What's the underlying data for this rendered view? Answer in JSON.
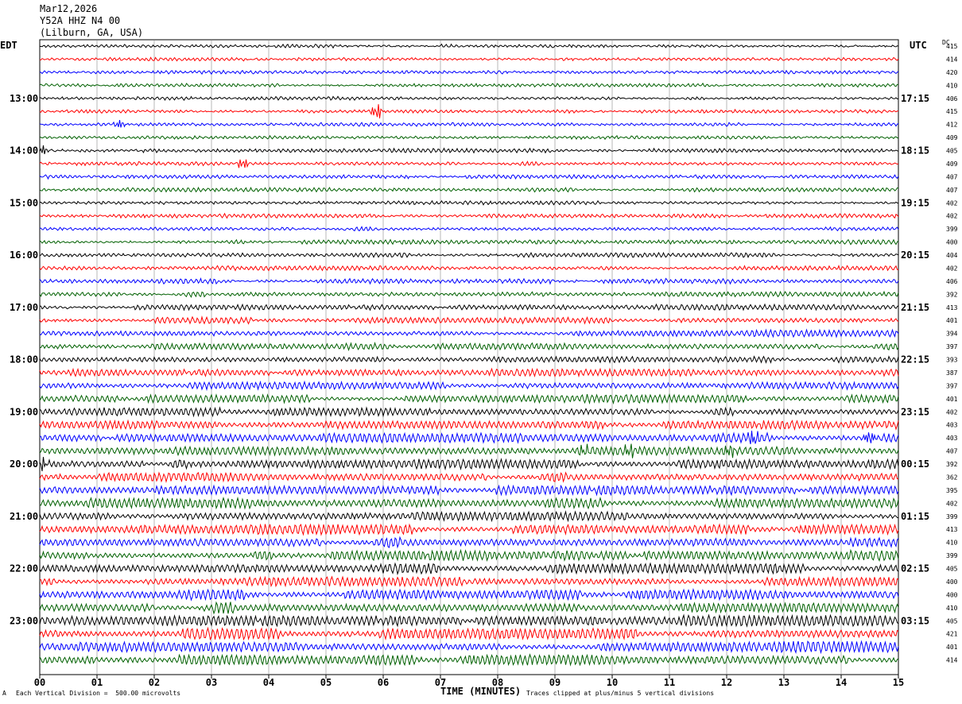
{
  "header": {
    "date": "Mar12,2026",
    "station": "Y52A HHZ N4 00",
    "location": "(Lilburn, GA, USA)"
  },
  "left_axis_label": "EDT",
  "right_axis_label": "UTC",
  "dc_label": "DC",
  "xlabel": "TIME (MINUTES)",
  "footer": {
    "division": "Each Vertical Division =  500.00 microvolts",
    "clipped": "Traces clipped at plus/minus 5 vertical divisions",
    "mark": "A"
  },
  "chart_data": {
    "type": "line",
    "description_of_rows": "helicorder, 48 traces of 15 minutes each",
    "x_ticks": [
      "00",
      "01",
      "02",
      "03",
      "04",
      "05",
      "06",
      "07",
      "08",
      "09",
      "10",
      "11",
      "12",
      "13",
      "14",
      "15"
    ],
    "xlim": [
      0,
      15
    ],
    "trace_colors": [
      "#000000",
      "#ff0000",
      "#0000ff",
      "#006000"
    ],
    "left_hour_labels": [
      {
        "row": 4,
        "text": "13:00"
      },
      {
        "row": 8,
        "text": "14:00"
      },
      {
        "row": 12,
        "text": "15:00"
      },
      {
        "row": 16,
        "text": "16:00"
      },
      {
        "row": 20,
        "text": "17:00"
      },
      {
        "row": 24,
        "text": "18:00"
      },
      {
        "row": 28,
        "text": "19:00"
      },
      {
        "row": 32,
        "text": "20:00"
      },
      {
        "row": 36,
        "text": "21:00"
      },
      {
        "row": 40,
        "text": "22:00"
      },
      {
        "row": 44,
        "text": "23:00"
      }
    ],
    "right_hour_labels": [
      {
        "row": 4,
        "text": "17:15"
      },
      {
        "row": 8,
        "text": "18:15"
      },
      {
        "row": 12,
        "text": "19:15"
      },
      {
        "row": 16,
        "text": "20:15"
      },
      {
        "row": 20,
        "text": "21:15"
      },
      {
        "row": 24,
        "text": "22:15"
      },
      {
        "row": 28,
        "text": "23:15"
      },
      {
        "row": 32,
        "text": "00:15"
      },
      {
        "row": 36,
        "text": "01:15"
      },
      {
        "row": 40,
        "text": "02:15"
      },
      {
        "row": 44,
        "text": "03:15"
      }
    ],
    "dc_offsets": [
      "415",
      "414",
      "420",
      "410",
      "406",
      "415",
      "412",
      "409",
      "405",
      "409",
      "407",
      "407",
      "402",
      "402",
      "399",
      "400",
      "404",
      "402",
      "406",
      "392",
      "413",
      "401",
      "394",
      "397",
      "393",
      "387",
      "397",
      "401",
      "402",
      "403",
      "403",
      "407",
      "392",
      "362",
      "395",
      "402",
      "399",
      "413",
      "410",
      "399",
      "405",
      "400",
      "400",
      "410",
      "405",
      "421",
      "401",
      "414"
    ],
    "amplitude_level": [
      0.25,
      0.25,
      0.25,
      0.25,
      0.25,
      0.25,
      0.25,
      0.25,
      0.3,
      0.3,
      0.3,
      0.3,
      0.3,
      0.3,
      0.3,
      0.35,
      0.35,
      0.4,
      0.4,
      0.45,
      0.45,
      0.5,
      0.55,
      0.55,
      0.55,
      0.6,
      0.65,
      0.7,
      0.7,
      0.75,
      0.8,
      0.8,
      0.8,
      0.8,
      0.85,
      0.85,
      0.85,
      0.85,
      0.9,
      0.9,
      0.9,
      0.9,
      0.9,
      0.95,
      0.95,
      0.95,
      0.95,
      0.95
    ],
    "events": [
      {
        "row": 5,
        "minute": 5.9,
        "amp": 2.2
      },
      {
        "row": 6,
        "minute": 1.4,
        "amp": 1.0
      },
      {
        "row": 9,
        "minute": 3.55,
        "amp": 1.6
      },
      {
        "row": 8,
        "minute": 0.05,
        "amp": 1.2
      },
      {
        "row": 30,
        "minute": 12.45,
        "amp": 1.8
      },
      {
        "row": 30,
        "minute": 14.5,
        "amp": 2.0
      },
      {
        "row": 31,
        "minute": 10.3,
        "amp": 1.8
      },
      {
        "row": 31,
        "minute": 12.05,
        "amp": 1.7
      },
      {
        "row": 31,
        "minute": 9.5,
        "amp": 1.4
      },
      {
        "row": 32,
        "minute": 0.05,
        "amp": 2.0
      }
    ]
  }
}
